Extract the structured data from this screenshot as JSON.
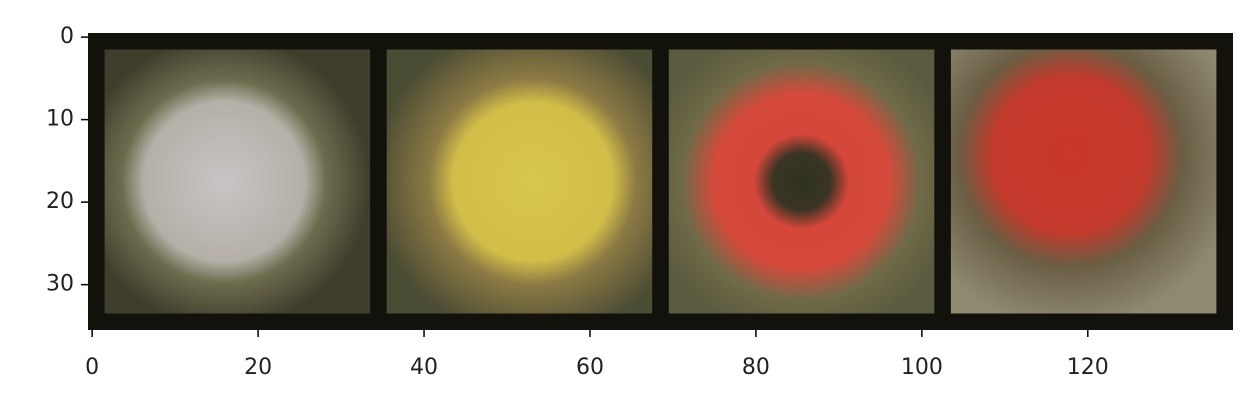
{
  "chart_data": {
    "type": "image",
    "xlim": [
      -0.5,
      137.5
    ],
    "ylim": [
      35.5,
      -0.5
    ],
    "xticks": [
      0,
      20,
      40,
      60,
      80,
      100,
      120
    ],
    "yticks": [
      0,
      10,
      20,
      30
    ]
  }
}
